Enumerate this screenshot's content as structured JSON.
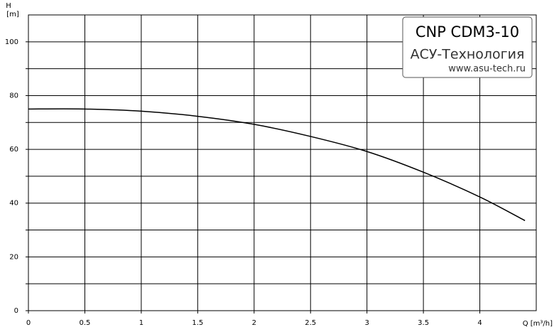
{
  "chart_data": {
    "type": "line",
    "y_label_top": "H",
    "y_label_unit": "[m]",
    "x_label": "Q [m³/h]",
    "annotations": [
      "CNP CDM3-10",
      "АСУ-Технология",
      "www.asu-tech.ru"
    ],
    "x": [
      0,
      0.5,
      1,
      1.5,
      2,
      2.5,
      3,
      3.5,
      4,
      4.4
    ],
    "series": [
      {
        "color": "#000000",
        "values": [
          75,
          75,
          74.2,
          72.3,
          69.3,
          64.8,
          59.2,
          51.5,
          42.3,
          33.5
        ]
      }
    ],
    "xlim": [
      0,
      4.5
    ],
    "ylim": [
      0,
      110
    ],
    "xticks": [
      0,
      0.5,
      1,
      1.5,
      2,
      2.5,
      3,
      3.5,
      4
    ],
    "yticks": [
      0,
      20,
      40,
      60,
      80,
      100
    ],
    "yminor": [
      10,
      30,
      50,
      70,
      90
    ],
    "grid": true
  }
}
